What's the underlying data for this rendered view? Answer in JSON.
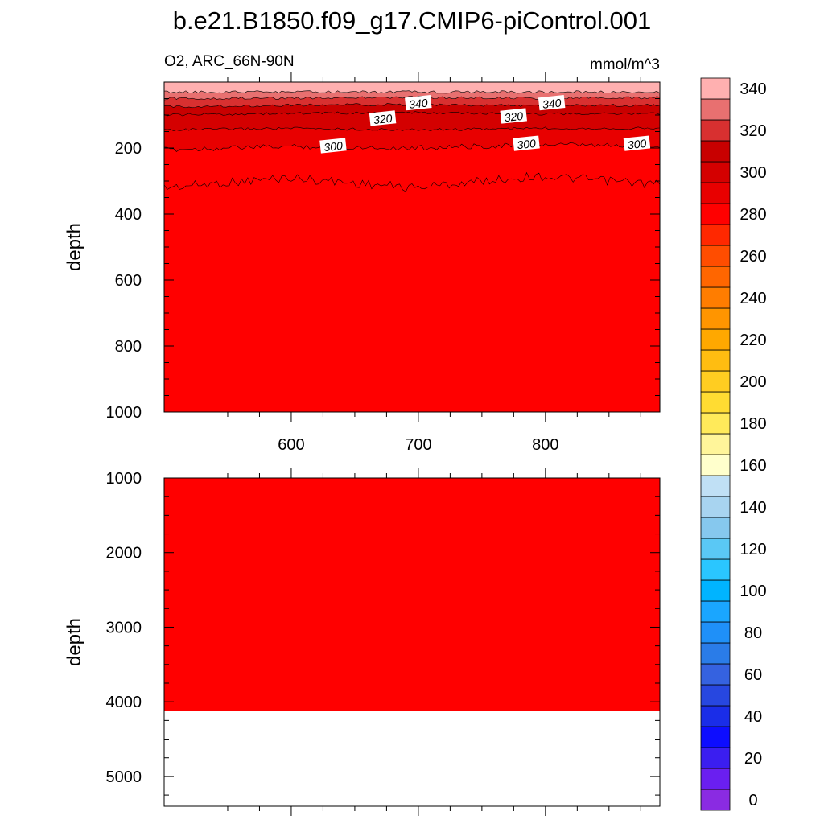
{
  "chart_data": {
    "type": "heatmap",
    "title": "b.e21.B1850.f09_g17.CMIP6-piControl.001",
    "variable_label": "O2, ARC_66N-90N",
    "units_label": "mmol/m^3",
    "xlim": [
      500,
      890
    ],
    "x_ticks": [
      600,
      700,
      800
    ],
    "panels": [
      {
        "name": "upper",
        "ylabel": "depth",
        "ylim": [
          1000,
          0
        ],
        "y_ticks": [
          200,
          400,
          600,
          800,
          1000
        ],
        "ocean_bottom_depth": null,
        "layers": [
          {
            "level_below": 350,
            "depth": [
              30,
              30,
              30,
              30,
              30
            ]
          },
          {
            "level_below": 340,
            "depth": [
              50,
              48,
              46,
              49,
              47
            ]
          },
          {
            "level_below": 330,
            "depth": [
              75,
              70,
              68,
              72,
              70
            ]
          },
          {
            "level_below": 320,
            "depth": [
              100,
              95,
              93,
              97,
              95
            ]
          },
          {
            "level_below": 310,
            "depth": [
              145,
              140,
              145,
              140,
              140
            ]
          },
          {
            "level_below": 300,
            "depth": [
              205,
              195,
              200,
              190,
              195
            ]
          },
          {
            "level_below": 290,
            "depth": [
              320,
              290,
              320,
              285,
              310
            ]
          }
        ],
        "contour_labels": [
          {
            "text": "340",
            "x": 700,
            "depth": 65
          },
          {
            "text": "340",
            "x": 805,
            "depth": 65
          },
          {
            "text": "320",
            "x": 672,
            "depth": 112
          },
          {
            "text": "320",
            "x": 775,
            "depth": 105
          },
          {
            "text": "300",
            "x": 633,
            "depth": 195
          },
          {
            "text": "300",
            "x": 785,
            "depth": 188
          },
          {
            "text": "300",
            "x": 872,
            "depth": 188
          }
        ]
      },
      {
        "name": "lower",
        "ylabel": "depth",
        "ylim": [
          5400,
          1000
        ],
        "y_ticks": [
          1000,
          2000,
          3000,
          4000,
          5000
        ],
        "ocean_bottom_depth": 4120,
        "layers": []
      }
    ],
    "deep_value_range": [
      280,
      290
    ],
    "colorbar": {
      "label_values": [
        0,
        20,
        40,
        60,
        80,
        100,
        120,
        140,
        160,
        180,
        200,
        220,
        240,
        260,
        280,
        300,
        320,
        340
      ],
      "colors_bottom_to_top": [
        "#8a2be2",
        "#6a1ff0",
        "#3b1ef0",
        "#0d0dff",
        "#1a2de8",
        "#2747e0",
        "#3562e0",
        "#2a7ce8",
        "#1f90f8",
        "#1aa6ff",
        "#00b4ff",
        "#2ac6ff",
        "#5ac8f5",
        "#86c8ee",
        "#a8d4f0",
        "#c0e0f5",
        "#ffffcc",
        "#fff59a",
        "#ffea5a",
        "#ffdc32",
        "#ffcd21",
        "#ffbd11",
        "#ffa800",
        "#ff9500",
        "#ff7d00",
        "#ff6600",
        "#ff4d00",
        "#ff2800",
        "#ff0000",
        "#e80000",
        "#d40000",
        "#c80000",
        "#d83030",
        "#e87070",
        "#ffb0b0"
      ]
    }
  }
}
